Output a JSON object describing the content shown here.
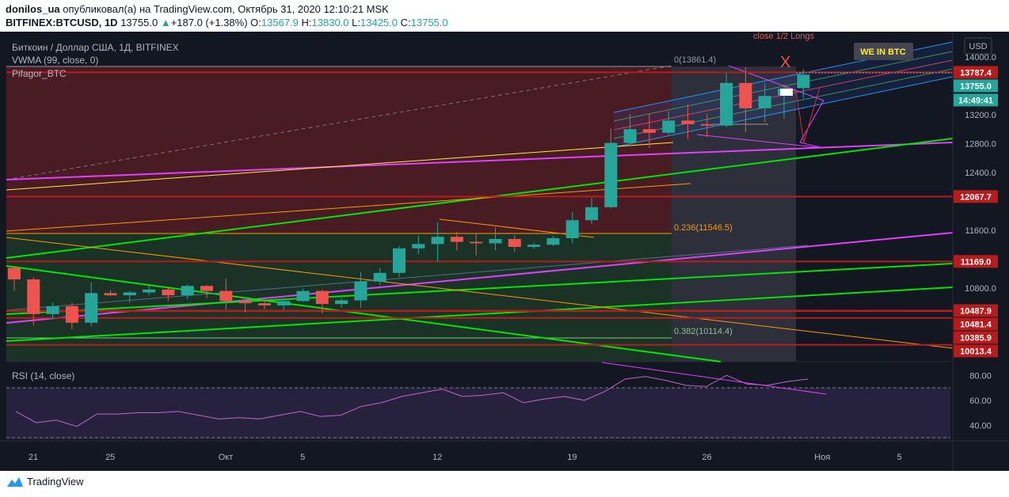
{
  "header": {
    "line1": {
      "author": "donilos_ua",
      "rest": " опубликовал(а) на TradingView.com, Октябрь 31, 2020 12:10:21 MSK"
    },
    "line2": {
      "symbol": "BITFINEX:BTCUSD, 1D",
      "last": "13755.0",
      "arrow": "▲",
      "change": "+187.0 (+1.38%)",
      "o_label": "O:",
      "o": "13567.9",
      "h_label": "H:",
      "h": "13830.0",
      "l_label": "L:",
      "l": "13425.0",
      "c_label": "C:",
      "c": "13755.0"
    }
  },
  "legend": {
    "title": "Биткоин / Доллар США, 1Д, BITFINEX",
    "vwma": "VWMA (99, close, 0)",
    "pifagor": "Pifagor_BTC"
  },
  "annotations": {
    "close_longs": "close 1/2 Longs",
    "x_mark": "X",
    "we_in_btc": "WE IN BTC",
    "fib_0": "0(13861.4)",
    "fib_236": "0.236(11546.5)",
    "fib_382": "0.382(10114.4)"
  },
  "rsi": {
    "label": "RSI (14, close)",
    "ticks": [
      "80.00",
      "60.00",
      "40.00"
    ],
    "tick_values": [
      80,
      60,
      40
    ],
    "upper": 70,
    "lower": 30,
    "values": [
      51,
      42,
      44,
      39,
      49,
      49,
      50,
      50,
      51,
      48,
      45,
      46,
      45,
      48,
      51,
      47,
      48,
      55,
      58,
      63,
      66,
      69,
      63,
      64,
      66,
      58,
      61,
      63,
      60,
      67,
      77,
      79,
      76,
      72,
      71,
      80,
      73,
      72,
      75,
      77
    ]
  },
  "price_axis": {
    "currency": "USD",
    "ticks": [
      "14000.0",
      "13200.0",
      "12800.0",
      "12400.0",
      "11600.0",
      "10800.0"
    ],
    "tick_values": [
      14000,
      13200,
      12800,
      12400,
      11600,
      10800
    ],
    "levels": [
      {
        "label": "13787.4",
        "value": 13787.4,
        "color": "#b71c1c"
      },
      {
        "label": "12067.7",
        "value": 12067.7,
        "color": "#b71c1c"
      },
      {
        "label": "11169.0",
        "value": 11169.0,
        "color": "#b71c1c"
      },
      {
        "label": "10487.9",
        "value": 10487.9,
        "color": "#b71c1c"
      },
      {
        "label": "10481.4",
        "value": 10481.4,
        "color": "#b71c1c"
      },
      {
        "label": "10385.9",
        "value": 10385.9,
        "color": "#b71c1c"
      },
      {
        "label": "10013.4",
        "value": 10013.4,
        "color": "#b71c1c"
      }
    ],
    "last": {
      "label": "13755.0",
      "value": 13755.0,
      "color": "#26a69a"
    },
    "countdown": "14:49:41"
  },
  "time_axis": {
    "labels": [
      "21",
      "25",
      "Окт",
      "5",
      "12",
      "19",
      "26",
      "Ноя",
      "5"
    ],
    "bar_index": [
      0,
      4,
      10,
      14,
      21,
      28,
      35,
      41,
      45
    ]
  },
  "colors": {
    "up": "#26a69a",
    "down": "#ef5350",
    "background": "#131722",
    "magenta": "#e040fb",
    "green_line": "#00e600",
    "orange_line": "#ff9800",
    "yellow_line": "#ffeb3b",
    "level_red": "#b71c1c"
  },
  "footer": {
    "brand": "TradingView"
  },
  "chart_data": {
    "type": "candlestick",
    "title": "Биткоин / Доллар США, 1Д, BITFINEX",
    "ylabel": "USD",
    "ylim": [
      9700,
      14300
    ],
    "series": [
      {
        "name": "BTCUSD",
        "ohlc": [
          [
            11080,
            11100,
            10760,
            10920
          ],
          [
            10920,
            10950,
            10280,
            10440
          ],
          [
            10440,
            10600,
            10370,
            10550
          ],
          [
            10550,
            10600,
            10230,
            10320
          ],
          [
            10320,
            10880,
            10270,
            10730
          ],
          [
            10730,
            10770,
            10690,
            10700
          ],
          [
            10700,
            10760,
            10600,
            10740
          ],
          [
            10740,
            10830,
            10700,
            10780
          ],
          [
            10780,
            10800,
            10620,
            10700
          ],
          [
            10700,
            10850,
            10650,
            10830
          ],
          [
            10830,
            10840,
            10660,
            10760
          ],
          [
            10760,
            10930,
            10500,
            10620
          ],
          [
            10620,
            10640,
            10460,
            10590
          ],
          [
            10590,
            10620,
            10510,
            10560
          ],
          [
            10560,
            10650,
            10500,
            10620
          ],
          [
            10620,
            10790,
            10610,
            10760
          ],
          [
            10760,
            10780,
            10450,
            10580
          ],
          [
            10580,
            10660,
            10530,
            10630
          ],
          [
            10630,
            11020,
            10530,
            10890
          ],
          [
            10890,
            11080,
            10840,
            11010
          ],
          [
            11010,
            11380,
            10950,
            11350
          ],
          [
            11350,
            11530,
            11270,
            11410
          ],
          [
            11410,
            11710,
            11170,
            11510
          ],
          [
            11510,
            11580,
            11320,
            11440
          ],
          [
            11440,
            11550,
            11250,
            11420
          ],
          [
            11420,
            11640,
            11320,
            11480
          ],
          [
            11480,
            11530,
            11300,
            11370
          ],
          [
            11370,
            11430,
            11340,
            11400
          ],
          [
            11400,
            11520,
            11380,
            11490
          ],
          [
            11490,
            11850,
            11420,
            11740
          ],
          [
            11740,
            12050,
            11690,
            11920
          ],
          [
            11920,
            13010,
            11900,
            12810
          ],
          [
            12810,
            13210,
            12760,
            13000
          ],
          [
            13000,
            13220,
            12740,
            12950
          ],
          [
            12950,
            13250,
            12920,
            13120
          ],
          [
            13120,
            13340,
            12860,
            13070
          ],
          [
            13070,
            13210,
            12890,
            13050
          ],
          [
            13050,
            13780,
            13030,
            13640
          ],
          [
            13640,
            13860,
            12960,
            13290
          ],
          [
            13290,
            13640,
            13100,
            13460
          ],
          [
            13470,
            13620,
            13150,
            13560
          ],
          [
            13567.9,
            13830,
            13425,
            13755
          ]
        ]
      }
    ]
  }
}
